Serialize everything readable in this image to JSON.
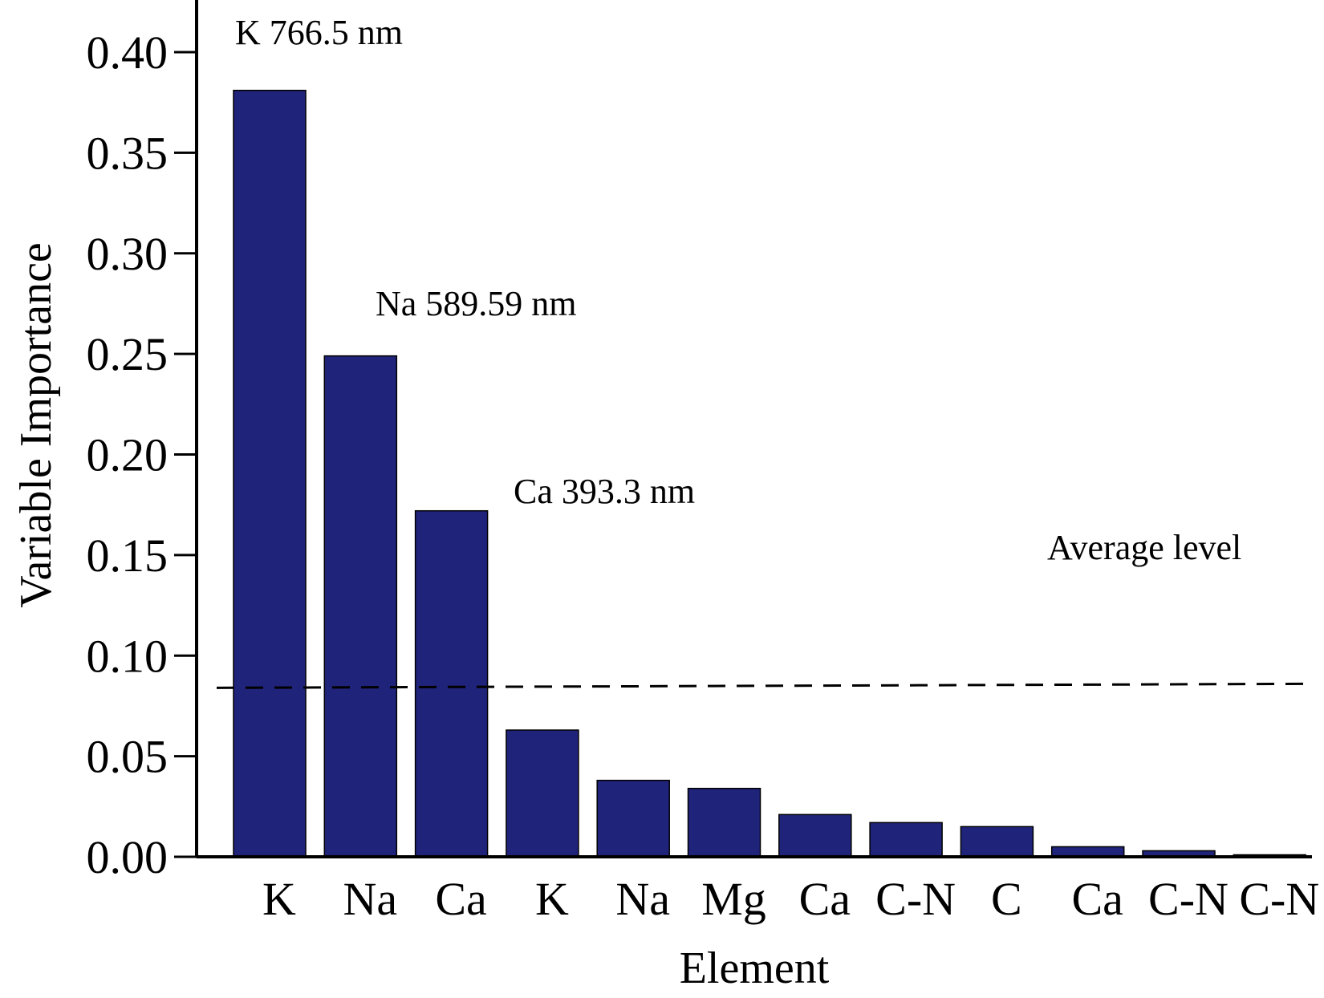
{
  "chart_data": {
    "type": "bar",
    "title": "",
    "xlabel": "Element",
    "ylabel": "Variable Importance",
    "categories": [
      "K",
      "Na",
      "Ca",
      "K",
      "Na",
      "Mg",
      "Ca",
      "C-N",
      "C",
      "Ca",
      "C-N",
      "C-N"
    ],
    "values": [
      0.381,
      0.249,
      0.172,
      0.063,
      0.038,
      0.034,
      0.021,
      0.017,
      0.015,
      0.005,
      0.003,
      0.001
    ],
    "ylim": [
      0,
      0.42
    ],
    "yticks": [
      "0.00",
      "0.05",
      "0.10",
      "0.15",
      "0.20",
      "0.25",
      "0.30",
      "0.35",
      "0.40"
    ],
    "bar_color": "#20237a",
    "average_level": {
      "label": "Average level",
      "value_start": 0.084,
      "value_end": 0.086
    },
    "annotations": [
      {
        "text": "K 766.5 nm",
        "bar_index": 0
      },
      {
        "text": "Na 589.59 nm",
        "bar_index": 1
      },
      {
        "text": "Ca 393.3 nm",
        "bar_index": 2
      }
    ]
  }
}
